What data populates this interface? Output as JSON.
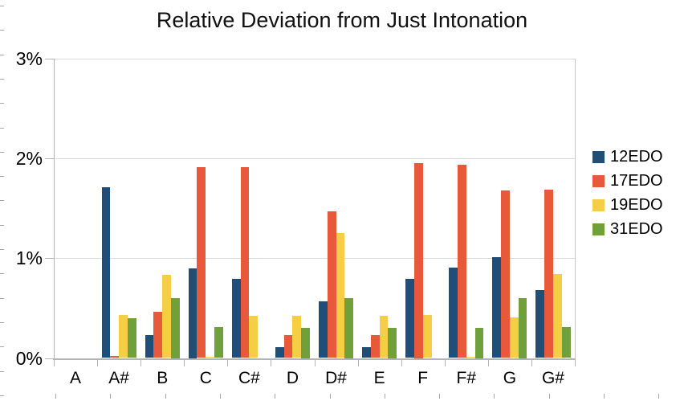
{
  "chart_data": {
    "type": "bar",
    "title": "Relative Deviation from Just Intonation",
    "categories": [
      "A",
      "A#",
      "B",
      "C",
      "C#",
      "D",
      "D#",
      "E",
      "F",
      "F#",
      "G",
      "G#"
    ],
    "series": [
      {
        "name": "12EDO",
        "color": "#1f4e79",
        "values": [
          0,
          1.71,
          0.23,
          0.9,
          0.79,
          0.11,
          0.57,
          0.11,
          0.79,
          0.91,
          1.01,
          0.68
        ]
      },
      {
        "name": "17EDO",
        "color": "#e8593b",
        "values": [
          0,
          0.02,
          0.46,
          1.91,
          1.91,
          0.23,
          1.47,
          0.23,
          1.95,
          1.94,
          1.68,
          1.69
        ]
      },
      {
        "name": "19EDO",
        "color": "#f5ce45",
        "values": [
          0,
          0.43,
          0.83,
          0.01,
          0.42,
          0.42,
          1.25,
          0.42,
          0.43,
          0.01,
          0.41,
          0.84
        ]
      },
      {
        "name": "31EDO",
        "color": "#70a03a",
        "values": [
          0,
          0.4,
          0.6,
          0.31,
          0.0,
          0.3,
          0.6,
          0.3,
          0.0,
          0.3,
          0.6,
          0.31
        ]
      }
    ],
    "xlabel": "",
    "ylabel": "",
    "y_tick_labels": [
      "0%",
      "1%",
      "2%",
      "3%"
    ],
    "ylim": [
      0,
      3
    ],
    "grid": true,
    "legend_position": "right",
    "colors": {
      "gridline": "#d9d9d9",
      "axis": "#b3b3b3",
      "text": "#000000",
      "background": "#ffffff"
    }
  }
}
